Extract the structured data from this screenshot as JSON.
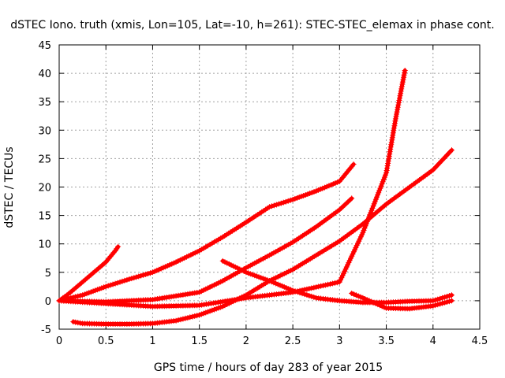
{
  "chart_data": {
    "type": "scatter",
    "title": "dSTEC Iono. truth (xmis, Lon=105, Lat=-10, h=261): STEC-STEC_elemax in phase cont.",
    "xlabel": "GPS time / hours of day 283 of year 2015",
    "ylabel": "dSTEC  / TECUs",
    "xlim": [
      0,
      4.5
    ],
    "ylim": [
      -5,
      45
    ],
    "xticks": [
      0,
      0.5,
      1,
      1.5,
      2,
      2.5,
      3,
      3.5,
      4,
      4.5
    ],
    "xtick_labels": [
      "0",
      "0.5",
      "1",
      "1.5",
      "2",
      "2.5",
      "3",
      "3.5",
      "4",
      "4.5"
    ],
    "yticks": [
      -5,
      0,
      5,
      10,
      15,
      20,
      25,
      30,
      35,
      40,
      45
    ],
    "ytick_labels": [
      "-5",
      "0",
      "5",
      "10",
      "15",
      "20",
      "25",
      "30",
      "35",
      "40",
      "45"
    ],
    "grid": true,
    "legend": "none",
    "marker": "plus",
    "color": "#ff0000",
    "series": [
      {
        "x": [
          0,
          0.1,
          0.2,
          0.3,
          0.4,
          0.5,
          0.55,
          0.6,
          0.63
        ],
        "values": [
          0,
          1.2,
          2.6,
          4.0,
          5.4,
          6.8,
          7.8,
          8.8,
          9.5
        ]
      },
      {
        "x": [
          0,
          0.25,
          0.5,
          0.75,
          1.0,
          1.25,
          1.5,
          1.75,
          2.0,
          2.25,
          2.5,
          2.75,
          3.0,
          3.15
        ],
        "values": [
          0,
          1.0,
          2.5,
          3.8,
          5.0,
          6.8,
          8.8,
          11.2,
          13.8,
          16.5,
          17.8,
          19.3,
          21.0,
          24.0
        ]
      },
      {
        "x": [
          0,
          0.5,
          1.0,
          1.5,
          1.75,
          2.0,
          2.25,
          2.5,
          2.75,
          3.0,
          3.13
        ],
        "values": [
          0,
          -0.2,
          0.2,
          1.5,
          3.5,
          5.8,
          8.0,
          10.3,
          13.0,
          16.0,
          18.0
        ]
      },
      {
        "x": [
          0,
          0.5,
          1.0,
          1.5,
          2.0,
          2.5,
          3.0,
          3.25,
          3.5,
          3.6,
          3.7
        ],
        "values": [
          0,
          -0.5,
          -1.0,
          -0.8,
          0.5,
          1.5,
          3.3,
          12.0,
          22.5,
          32.0,
          40.5
        ]
      },
      {
        "x": [
          0.15,
          0.25,
          0.5,
          0.75,
          1.0,
          1.25,
          1.5,
          1.75,
          2.0,
          2.25,
          2.5,
          2.75,
          3.0,
          3.25,
          3.5,
          3.75,
          4.0,
          4.2
        ],
        "values": [
          -3.7,
          -4.0,
          -4.1,
          -4.1,
          -4.0,
          -3.5,
          -2.5,
          -1.0,
          1.0,
          3.5,
          5.5,
          8.0,
          10.5,
          13.5,
          17.0,
          20.0,
          23.0,
          26.5
        ]
      },
      {
        "x": [
          1.75,
          2.0,
          2.25,
          2.5,
          2.75,
          3.0,
          3.25,
          3.5,
          3.75,
          4.0,
          4.2
        ],
        "values": [
          7.0,
          5.0,
          3.5,
          1.8,
          0.5,
          0.0,
          -0.3,
          -0.3,
          -0.1,
          0.0,
          1.0
        ]
      },
      {
        "x": [
          3.13,
          3.25,
          3.5,
          3.75,
          4.0,
          4.2
        ],
        "values": [
          1.3,
          0.5,
          -1.3,
          -1.4,
          -0.9,
          0.0
        ]
      }
    ]
  }
}
